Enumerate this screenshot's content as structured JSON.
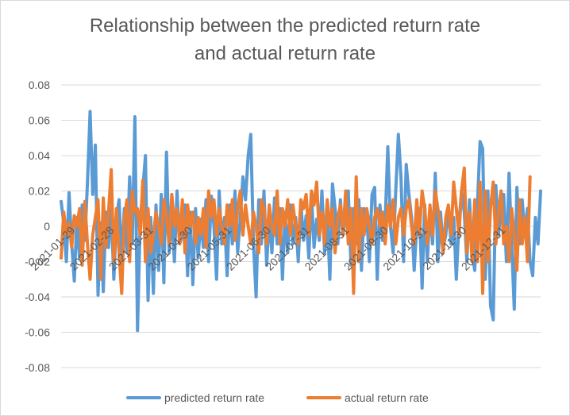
{
  "chart_data": {
    "type": "line",
    "title_lines": [
      "Relationship between the predicted return rate",
      "and actual return rate"
    ],
    "xlabel": "",
    "ylabel": "",
    "ylim": [
      -0.08,
      0.08
    ],
    "y_ticks": [
      "0.08",
      "0.06",
      "0.04",
      "0.02",
      "0",
      "-0.02",
      "-0.04",
      "-0.06",
      "-0.08"
    ],
    "y_tick_values": [
      0.08,
      0.06,
      0.04,
      0.02,
      0,
      -0.02,
      -0.04,
      -0.06,
      -0.08
    ],
    "x_tick_labels": [
      "2021-01-29",
      "2021-02-28",
      "2021-03-31",
      "2021-04-30",
      "2021-05-31",
      "2021-06-30",
      "2021-07-31",
      "2021-08-31",
      "2021-09-30",
      "2021-10-31",
      "2021-11-30",
      "2021-12-31"
    ],
    "grid": true,
    "legend_position": "bottom",
    "colors": {
      "predicted": "#5b9bd5",
      "actual": "#ed7d31"
    },
    "series": [
      {
        "name": "predicted return rate",
        "color": "#5b9bd5",
        "values": [
          0.014,
          0.002,
          -0.02,
          0.019,
          -0.01,
          -0.031,
          0.005,
          -0.018,
          0.012,
          -0.008,
          0.025,
          0.065,
          0.018,
          0.046,
          -0.039,
          0.002,
          -0.037,
          0.008,
          -0.012,
          0.01,
          -0.03,
          0.005,
          0.015,
          -0.02,
          0.01,
          -0.015,
          0.028,
          -0.01,
          0.062,
          -0.059,
          0.003,
          0.021,
          0.04,
          -0.042,
          0.005,
          -0.038,
          0.012,
          -0.025,
          0.018,
          -0.032,
          0.042,
          -0.015,
          0.008,
          -0.02,
          0.02,
          -0.01,
          -0.005,
          0.012,
          -0.028,
          0.008,
          -0.033,
          0.01,
          -0.018,
          0.004,
          -0.012,
          0.015,
          -0.02,
          0.017,
          0.0,
          -0.03,
          0.02,
          -0.01,
          0.005,
          -0.028,
          0.012,
          -0.01,
          0.02,
          -0.015,
          0.005,
          0.028,
          0.015,
          0.04,
          0.052,
          -0.01,
          -0.04,
          0.015,
          -0.01,
          0.02,
          -0.022,
          0.005,
          -0.015,
          0.016,
          -0.01,
          0.01,
          -0.03,
          0.008,
          -0.015,
          0.012,
          -0.01,
          0.005,
          -0.02,
          0.013,
          -0.008,
          0.006,
          -0.018,
          0.018,
          -0.012,
          0.004,
          -0.008,
          0.02,
          -0.015,
          0.007,
          -0.03,
          0.024,
          0.01,
          -0.01,
          0.015,
          -0.005,
          0.008,
          0.02,
          -0.022,
          0.01,
          -0.01,
          0.015,
          -0.025,
          0.01,
          0.005,
          -0.02,
          0.018,
          0.022,
          -0.03,
          0.012,
          -0.008,
          0.003,
          0.045,
          0.0,
          -0.015,
          0.02,
          0.052,
          0.028,
          -0.02,
          0.035,
          0.018,
          0.005,
          -0.025,
          0.0,
          0.01,
          -0.035,
          0.012,
          -0.02,
          0.01,
          -0.01,
          0.03,
          -0.02,
          0.008,
          -0.012,
          -0.005,
          0.01,
          -0.01,
          0.005,
          -0.03,
          0.002,
          0.02,
          0.008,
          -0.02,
          0.015,
          -0.015,
          -0.025,
          0.012,
          0.048,
          0.044,
          -0.03,
          0.02,
          -0.045,
          -0.053,
          0.023,
          -0.005,
          0.01,
          0.018,
          -0.02,
          0.03,
          -0.01,
          -0.047,
          0.022,
          -0.01,
          0.015,
          -0.005,
          0.01,
          -0.02,
          -0.028,
          0.005,
          -0.01,
          0.02
        ]
      },
      {
        "name": "actual return rate",
        "color": "#ed7d31",
        "values": [
          -0.018,
          0.008,
          -0.005,
          0.002,
          -0.012,
          0.006,
          0.0,
          0.01,
          -0.022,
          0.014,
          -0.01,
          -0.03,
          -0.005,
          0.005,
          0.015,
          -0.03,
          0.016,
          -0.012,
          0.008,
          0.032,
          -0.02,
          0.01,
          -0.015,
          -0.038,
          0.005,
          0.015,
          -0.02,
          0.02,
          0.008,
          0.01,
          -0.005,
          0.026,
          -0.02,
          0.01,
          -0.015,
          -0.005,
          0.008,
          0.0,
          -0.01,
          0.015,
          0.005,
          -0.01,
          0.018,
          0.0,
          0.01,
          -0.01,
          0.015,
          -0.015,
          0.012,
          0.0,
          0.008,
          -0.01,
          0.005,
          -0.005,
          0.01,
          -0.012,
          0.02,
          0.005,
          0.015,
          -0.005,
          0.01,
          0.0,
          -0.01,
          0.012,
          0.0,
          0.015,
          -0.008,
          0.01,
          0.02,
          -0.005,
          0.012,
          0.0,
          -0.01,
          0.008,
          0.0,
          -0.015,
          0.015,
          0.01,
          -0.01,
          0.012,
          0.0,
          -0.005,
          0.02,
          -0.01,
          0.01,
          0.0,
          0.015,
          -0.005,
          0.012,
          0.0,
          -0.01,
          0.015,
          0.01,
          0.018,
          -0.005,
          0.02,
          0.012,
          0.025,
          -0.005,
          0.008,
          -0.01,
          0.015,
          0.0,
          0.01,
          -0.015,
          0.005,
          0.012,
          -0.005,
          0.02,
          -0.01,
          0.01,
          -0.038,
          0.028,
          -0.02,
          0.01,
          -0.005,
          0.01,
          0.0,
          -0.01,
          0.005,
          0.01,
          0.0,
          0.008,
          -0.01,
          0.012,
          0.0,
          0.015,
          -0.01,
          0.005,
          0.01,
          -0.005,
          0.01,
          0.015,
          0.0,
          -0.01,
          0.015,
          -0.005,
          0.02,
          0.01,
          -0.01,
          0.012,
          -0.005,
          0.02,
          0.01,
          0.0,
          -0.015,
          0.005,
          0.012,
          -0.005,
          0.025,
          0.01,
          -0.005,
          0.02,
          0.033,
          -0.015,
          0.008,
          -0.02,
          0.015,
          -0.02,
          0.025,
          -0.038,
          0.02,
          -0.02,
          0.01,
          0.025,
          -0.01,
          0.008,
          0.02,
          -0.01,
          0.0,
          -0.02,
          0.01,
          -0.005,
          -0.025,
          0.015,
          -0.01,
          0.005,
          -0.02,
          0.028
        ]
      }
    ]
  }
}
